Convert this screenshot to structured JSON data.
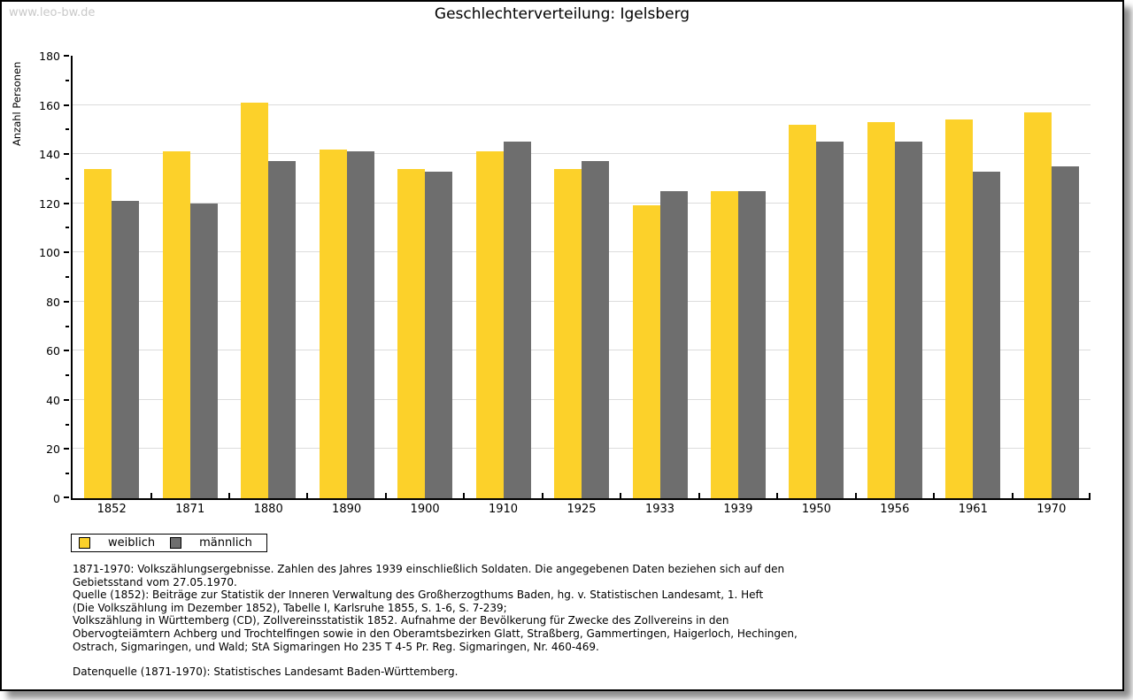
{
  "watermark": "www.leo-bw.de",
  "chart_data": {
    "type": "bar",
    "title": "Geschlechterverteilung: Igelsberg",
    "xlabel": "",
    "ylabel": "Anzahl Personen",
    "ylim": [
      0,
      180
    ],
    "ytick_step": 20,
    "yminor_step": 10,
    "grid": true,
    "legend_position": "bottom-left",
    "categories": [
      "1852",
      "1871",
      "1880",
      "1890",
      "1900",
      "1910",
      "1925",
      "1933",
      "1939",
      "1950",
      "1956",
      "1961",
      "1970"
    ],
    "series": [
      {
        "name": "weiblich",
        "color": "#FCD12A",
        "values": [
          134,
          141,
          161,
          142,
          134,
          141,
          134,
          119,
          125,
          152,
          153,
          154,
          157
        ]
      },
      {
        "name": "männlich",
        "color": "#6E6E6E",
        "values": [
          121,
          120,
          137,
          141,
          133,
          145,
          137,
          125,
          125,
          145,
          145,
          133,
          135
        ]
      }
    ]
  },
  "colors": {
    "female_bar": "#FCD12A",
    "male_bar": "#6E6E6E",
    "gridline": "#dcdcdc",
    "watermark": "#c9c9c9"
  },
  "footer": {
    "lines": [
      "1871-1970: Volkszählungsergebnisse. Zahlen des Jahres 1939 einschließlich Soldaten. Die angegebenen Daten beziehen sich auf den",
      "Gebietsstand vom 27.05.1970.",
      "Quelle (1852): Beiträge zur Statistik der Inneren Verwaltung des Großherzogthums Baden, hg. v. Statistischen Landesamt, 1. Heft",
      "(Die Volkszählung im Dezember 1852), Tabelle I, Karlsruhe 1855, S. 1-6, S. 7-239;",
      "Volkszählung in Württemberg (CD), Zollvereinsstatistik 1852. Aufnahme der Bevölkerung für Zwecke des Zollvereins in den",
      "Obervogteiämtern Achberg und Trochtelfingen sowie in den Oberamtsbezirken Glatt, Straßberg, Gammertingen, Haigerloch, Hechingen,",
      "Ostrach, Sigmaringen, und Wald; StA Sigmaringen Ho 235 T 4-5 Pr. Reg. Sigmaringen, Nr. 460-469."
    ],
    "datasource": "Datenquelle (1871-1970): Statistisches Landesamt Baden-Württemberg."
  }
}
